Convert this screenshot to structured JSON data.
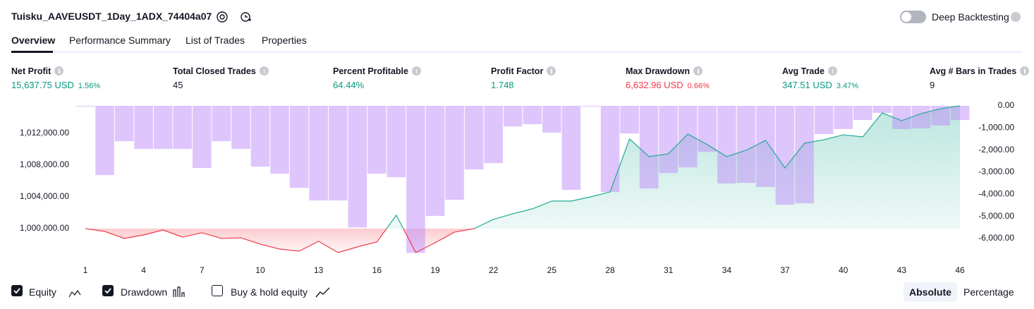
{
  "header": {
    "title": "Tuisku_AAVEUSDT_1Day_1ADX_74404a07",
    "toggle_label": "Deep Backtesting"
  },
  "tabs": [
    "Overview",
    "Performance Summary",
    "List of Trades",
    "Properties"
  ],
  "active_tab": 0,
  "metrics": [
    {
      "label": "Net Profit",
      "value": "15,637.75 USD",
      "percent": "1.56%",
      "color": "#089981"
    },
    {
      "label": "Total Closed Trades",
      "value": "45",
      "color": "#131722"
    },
    {
      "label": "Percent Profitable",
      "value": "64.44%",
      "color": "#089981"
    },
    {
      "label": "Profit Factor",
      "value": "1.748",
      "color": "#089981"
    },
    {
      "label": "Max Drawdown",
      "value": "6,632.96 USD",
      "percent": "0.66%",
      "color": "#f23645"
    },
    {
      "label": "Avg Trade",
      "value": "347.51 USD",
      "percent": "3.47%",
      "color": "#089981"
    },
    {
      "label": "Avg # Bars in Trades",
      "value": "9",
      "color": "#131722"
    }
  ],
  "chart_data": {
    "type": "combo",
    "x": [
      1,
      2,
      3,
      4,
      5,
      6,
      7,
      8,
      9,
      10,
      11,
      12,
      13,
      14,
      15,
      16,
      17,
      18,
      19,
      20,
      21,
      22,
      23,
      24,
      25,
      26,
      27,
      28,
      29,
      30,
      31,
      32,
      33,
      34,
      35,
      36,
      37,
      38,
      39,
      40,
      41,
      42,
      43,
      44,
      45,
      46
    ],
    "xlim": [
      0.5,
      46.5
    ],
    "xticks": [
      1,
      4,
      7,
      10,
      13,
      16,
      19,
      22,
      25,
      28,
      31,
      34,
      37,
      40,
      43,
      46
    ],
    "ylim": [
      996800,
      1015470
    ],
    "yticks": [
      {
        "value": 1000000,
        "label": "1,000,000.00"
      },
      {
        "value": 1004000,
        "label": "1,004,000.00"
      },
      {
        "value": 1008000,
        "label": "1,008,000.00"
      },
      {
        "value": 1012000,
        "label": "1,012,000.00"
      }
    ],
    "y2lim": [
      -6700,
      0
    ],
    "y2ticks": [
      {
        "value": 0,
        "label": "0.00"
      },
      {
        "value": -1000,
        "label": "-1,000.00"
      },
      {
        "value": -2000,
        "label": "-2,000.00"
      },
      {
        "value": -3000,
        "label": "-3,000.00"
      },
      {
        "value": -4000,
        "label": "-4,000.00"
      },
      {
        "value": -5000,
        "label": "-5,000.00"
      },
      {
        "value": -6000,
        "label": "-6,000.00"
      }
    ],
    "series": [
      {
        "name": "Equity",
        "type": "line",
        "color": "#22ab94",
        "negative_color": "#f23645",
        "values": [
          1000000,
          999640,
          998760,
          999200,
          999820,
          998930,
          999470,
          998760,
          998840,
          998040,
          997420,
          997150,
          998400,
          996980,
          997690,
          998310,
          1001690,
          996980,
          998220,
          999560,
          1000000,
          1001160,
          1001870,
          1002490,
          1003470,
          1003470,
          1004000,
          1004620,
          1011290,
          1009070,
          1009420,
          1011910,
          1010580,
          1009070,
          1009870,
          1011110,
          1007640,
          1010760,
          1011200,
          1011820,
          1011560,
          1014580,
          1013600,
          1014490,
          1015110,
          1015470
        ]
      },
      {
        "name": "Drawdown",
        "type": "bar",
        "axis": "y2",
        "color": "rgba(190,140,250,0.5)",
        "values": [
          0,
          -3130,
          -1600,
          -1950,
          -1950,
          -1950,
          -2810,
          -1600,
          -1950,
          -2750,
          -3070,
          -3710,
          -4280,
          -4280,
          -5500,
          -3070,
          -3230,
          -6650,
          -4980,
          -4250,
          -2880,
          -2590,
          -930,
          -830,
          -1210,
          -3800,
          0,
          -3900,
          -1250,
          -3740,
          -3040,
          -2780,
          -2080,
          -3510,
          -3480,
          -3670,
          -4470,
          -4410,
          -1280,
          -1050,
          -640,
          -320,
          -1050,
          -1020,
          -890,
          -640
        ]
      }
    ]
  },
  "controls": {
    "toggles": [
      {
        "label": "Equity",
        "checked": true
      },
      {
        "label": "Drawdown",
        "checked": true
      },
      {
        "label": "Buy & hold equity",
        "checked": false
      }
    ],
    "modes": [
      "Absolute",
      "Percentage"
    ],
    "active_mode": 0
  }
}
